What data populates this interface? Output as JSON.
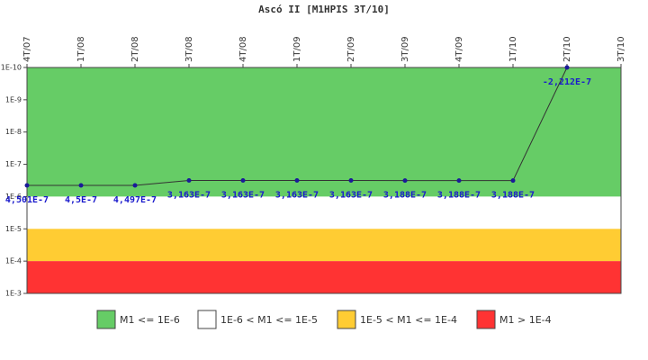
{
  "chart_data": {
    "type": "line",
    "title": "Ascó II [M1HPIS 3T/10]",
    "categories": [
      "4T/07",
      "1T/08",
      "2T/08",
      "3T/08",
      "4T/08",
      "1T/09",
      "2T/09",
      "3T/09",
      "4T/09",
      "1T/10",
      "2T/10",
      "3T/10"
    ],
    "series": [
      {
        "name": "M1",
        "color": "#333333",
        "marker_color": "#1a1a99",
        "values": [
          4.501e-07,
          4.5e-07,
          4.497e-07,
          3.163e-07,
          3.163e-07,
          3.163e-07,
          3.163e-07,
          3.188e-07,
          3.188e-07,
          3.188e-07,
          -2.212e-07,
          null
        ],
        "value_labels": [
          "4,501E-7",
          "4,5E-7",
          "4,497E-7",
          "3,163E-7",
          "3,163E-7",
          "3,163E-7",
          "3,163E-7",
          "3,188E-7",
          "3,188E-7",
          "3,188E-7",
          "-2,212E-7",
          null
        ]
      }
    ],
    "ylog": true,
    "yinverted": true,
    "ylim": [
      1e-10,
      0.001
    ],
    "yticks": [
      {
        "value": 1e-10,
        "label": "1E-10"
      },
      {
        "value": 1e-09,
        "label": "1E-9"
      },
      {
        "value": 1e-08,
        "label": "1E-8"
      },
      {
        "value": 1e-07,
        "label": "1E-7"
      },
      {
        "value": 1e-06,
        "label": "1E-6"
      },
      {
        "value": 1e-05,
        "label": "1E-5"
      },
      {
        "value": 0.0001,
        "label": "1E-4"
      },
      {
        "value": 0.001,
        "label": "1E-3"
      }
    ],
    "bands": [
      {
        "name": "M1 <= 1E-6",
        "color": "#66cc66",
        "from": 1e-10,
        "to": 1e-06
      },
      {
        "name": "1E-6 < M1 <= 1E-5",
        "color": "#ffffff",
        "from": 1e-06,
        "to": 1e-05
      },
      {
        "name": "1E-5 < M1 <= 1E-4",
        "color": "#ffcc33",
        "from": 1e-05,
        "to": 0.0001
      },
      {
        "name": "M1 > 1E-4",
        "color": "#ff3333",
        "from": 0.0001,
        "to": 0.001
      }
    ]
  }
}
